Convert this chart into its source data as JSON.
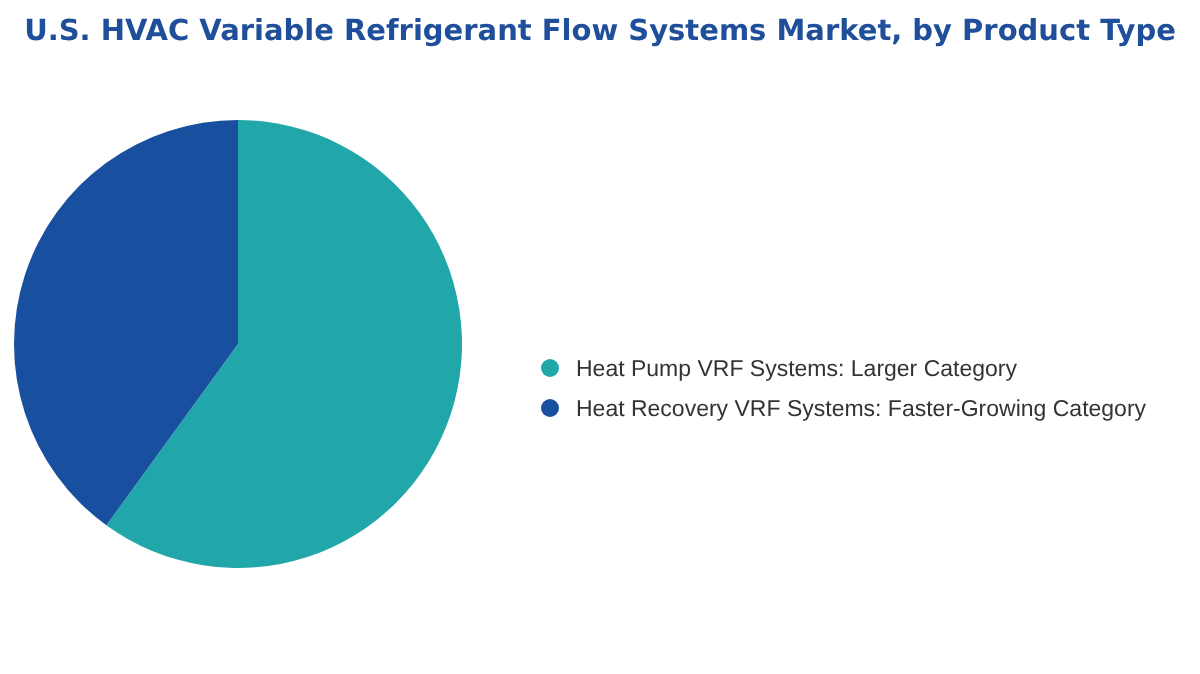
{
  "chart_data": {
    "type": "pie",
    "title": "U.S. HVAC Variable Refrigerant Flow Systems Market, by Product Type",
    "categories": [
      "Heat Pump VRF Systems:  Larger Category",
      "Heat Recovery VRF Systems:  Faster-Growing Category"
    ],
    "values": [
      60,
      40
    ],
    "colors": [
      "#21a7aa",
      "#184f9e"
    ],
    "legend": "right"
  }
}
